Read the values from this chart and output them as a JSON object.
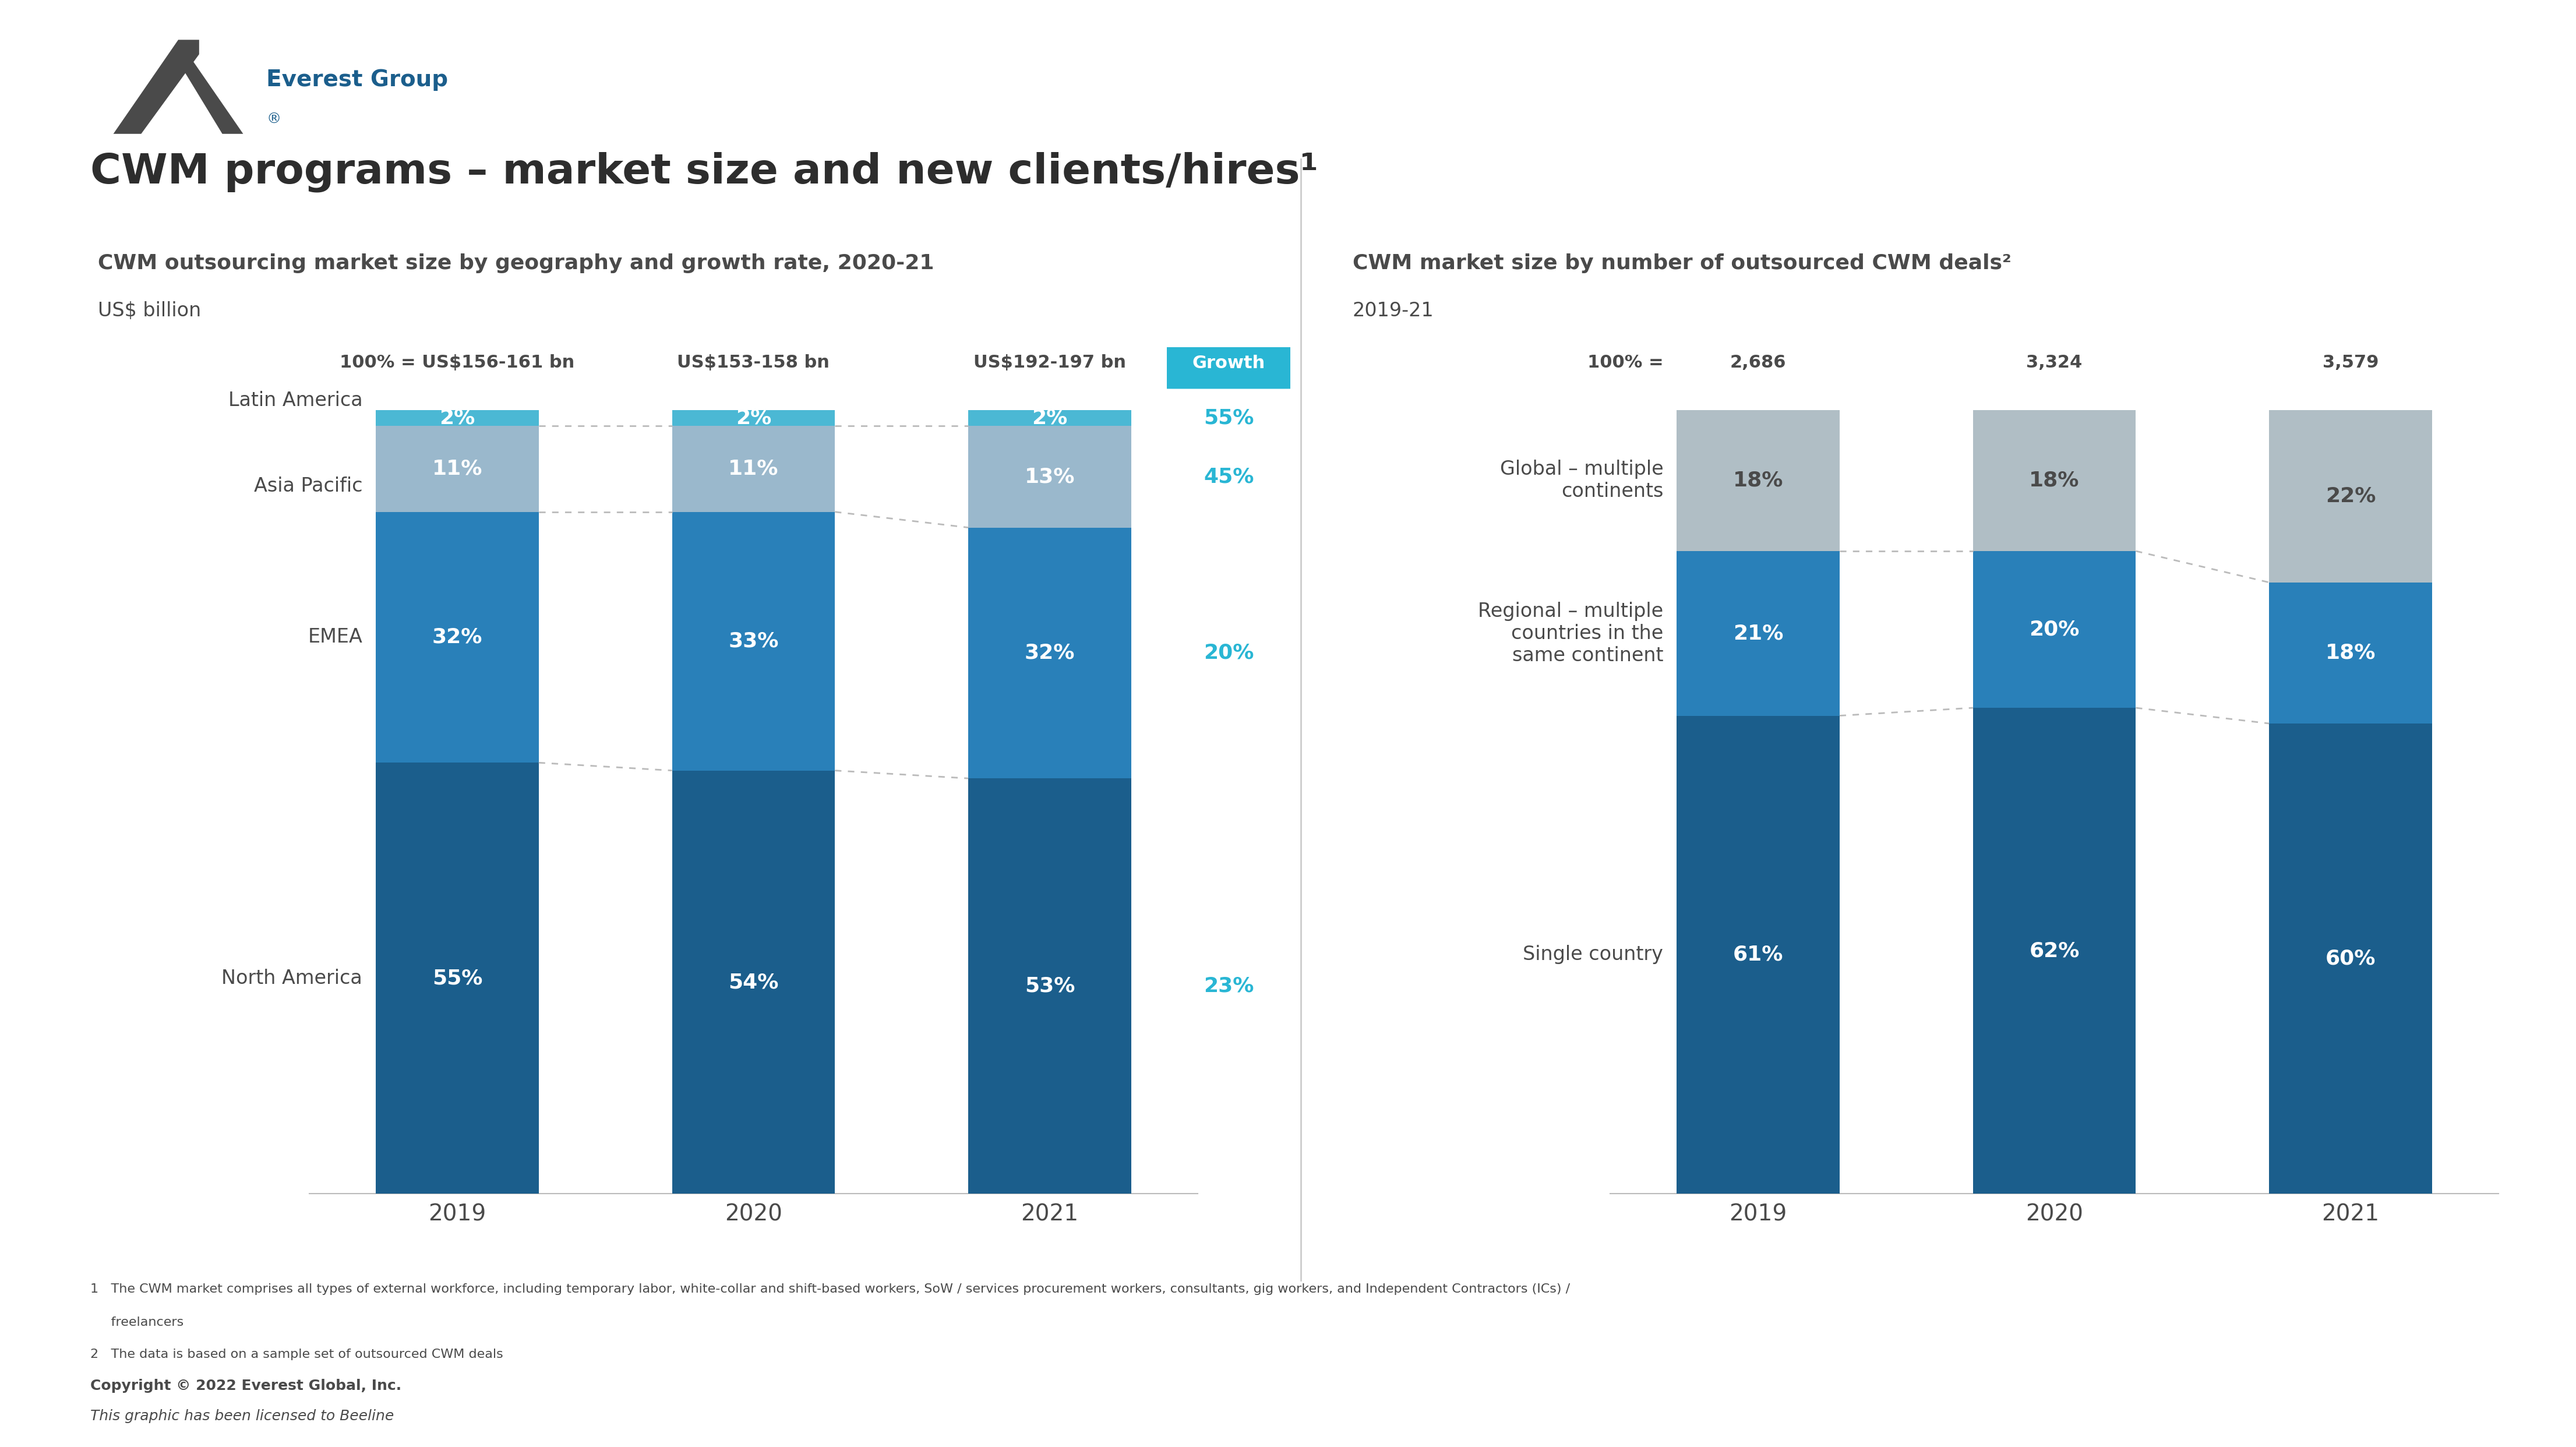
{
  "title": "CWM programs – market size and new clients/hires¹",
  "left_chart": {
    "subtitle": "CWM outsourcing market size by geography and growth rate, 2020-21",
    "unit": "US$ billion",
    "years": [
      "2019",
      "2020",
      "2021"
    ],
    "totals": [
      "100% = US$156-161 bn",
      "US$153-158 bn",
      "US$192-197 bn"
    ],
    "segments": {
      "North America": [
        55,
        54,
        53
      ],
      "EMEA": [
        32,
        33,
        32
      ],
      "Asia Pacific": [
        11,
        11,
        13
      ],
      "Latin America": [
        2,
        2,
        2
      ]
    },
    "colors": {
      "North America": "#1b5e8c",
      "EMEA": "#2980b9",
      "Asia Pacific": "#9ab8cc",
      "Latin America": "#4bb8d4"
    },
    "growth_label": "Growth",
    "growth_values_order": [
      "bottom_to_top"
    ],
    "growth_values": {
      "North America": "23%",
      "EMEA": "20%",
      "Asia Pacific": "45%",
      "Latin America": "55%"
    },
    "growth_color": "#29b6d4"
  },
  "right_chart": {
    "subtitle": "CWM market size by number of outsourced CWM deals²",
    "unit": "2019-21",
    "years": [
      "2019",
      "2020",
      "2021"
    ],
    "totals": [
      "2,686",
      "3,324",
      "3,579"
    ],
    "segments": {
      "Single country": [
        61,
        62,
        60
      ],
      "Regional": [
        21,
        20,
        18
      ],
      "Global": [
        18,
        18,
        22
      ]
    },
    "segment_labels": {
      "Single country": "Single country",
      "Regional": "Regional – multiple\ncountries in the\nsame continent",
      "Global": "Global – multiple\ncontinents"
    },
    "colors": {
      "Single country": "#1b5e8c",
      "Regional": "#2980b9",
      "Global": "#b0bec5"
    }
  },
  "footnotes": [
    "1   The CWM market comprises all types of external workforce, including temporary labor, white-collar and shift-based workers, SoW / services procurement workers, consultants, gig workers, and Independent Contractors (ICs) /",
    "     freelancers",
    "2   The data is based on a sample set of outsourced CWM deals"
  ],
  "copyright_bold": "Copyright © 2022 Everest Global, Inc.",
  "copyright_italic": "This graphic has been licensed to Beeline",
  "everest_logo_color": "#1b5e8c",
  "background_color": "#ffffff",
  "text_color": "#4a4a4a",
  "title_color": "#2d2d2d"
}
